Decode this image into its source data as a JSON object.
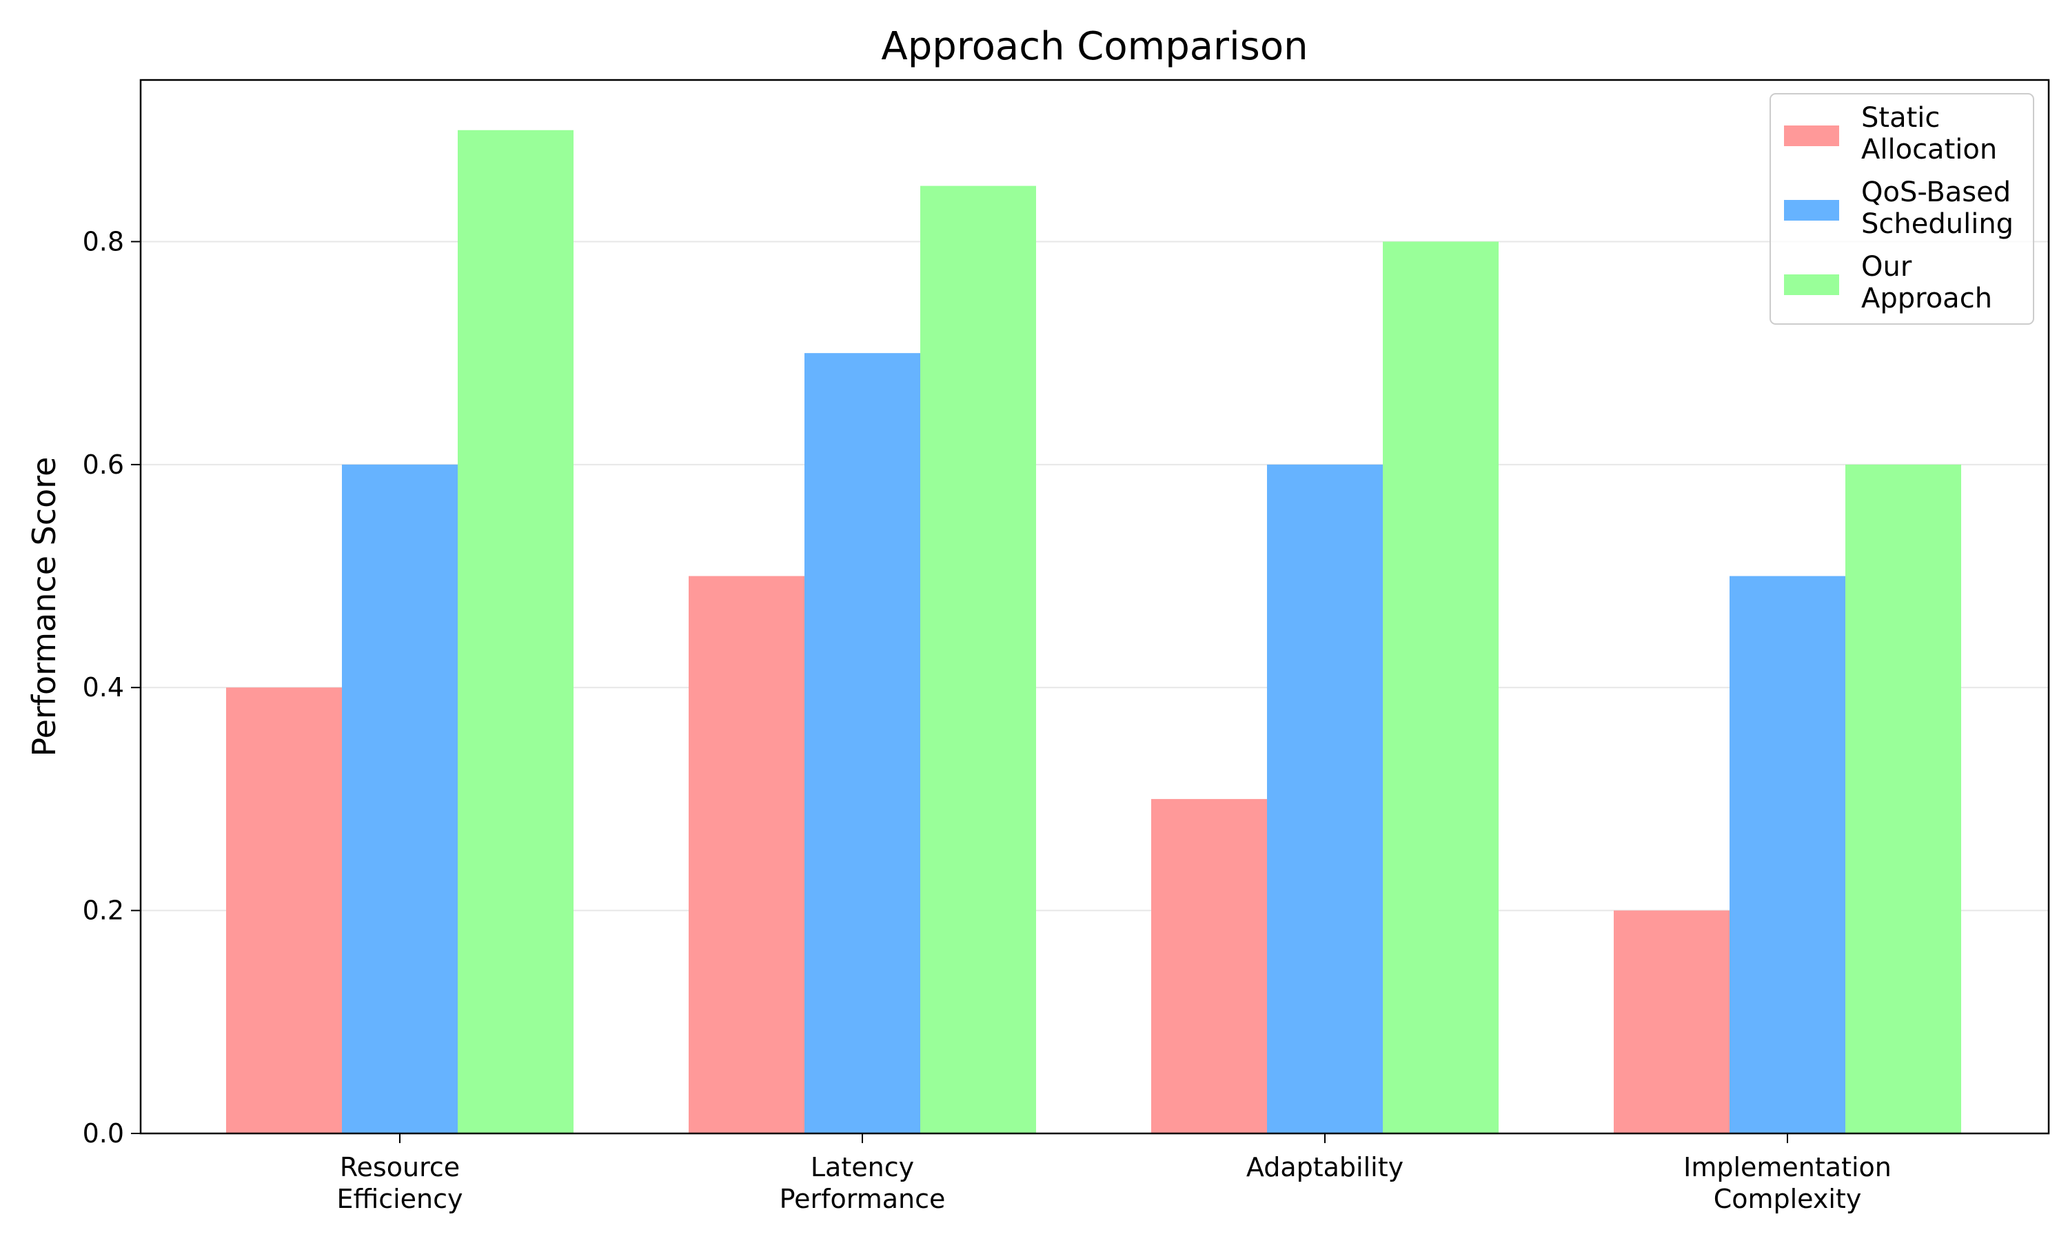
{
  "chart_data": {
    "type": "bar",
    "title": "Approach Comparison",
    "xlabel": "",
    "ylabel": "Performance Score",
    "ylim": [
      0,
      0.945
    ],
    "yticks": [
      "0.0",
      "0.2",
      "0.4",
      "0.6",
      "0.8"
    ],
    "grid": "horizontal",
    "legend_position": "top-right",
    "categories": [
      [
        "Resource",
        "Efficiency"
      ],
      [
        "Latency",
        "Performance"
      ],
      [
        "Adaptability"
      ],
      [
        "Implementation",
        "Complexity"
      ]
    ],
    "series": [
      {
        "name": [
          "Static",
          "Allocation"
        ],
        "color": "#ff9999",
        "values": [
          0.4,
          0.5,
          0.3,
          0.2
        ]
      },
      {
        "name": [
          "QoS-Based",
          "Scheduling"
        ],
        "color": "#66b3ff",
        "values": [
          0.6,
          0.7,
          0.6,
          0.5
        ]
      },
      {
        "name": [
          "Our",
          "Approach"
        ],
        "color": "#99ff99",
        "values": [
          0.9,
          0.85,
          0.8,
          0.6
        ]
      }
    ]
  }
}
